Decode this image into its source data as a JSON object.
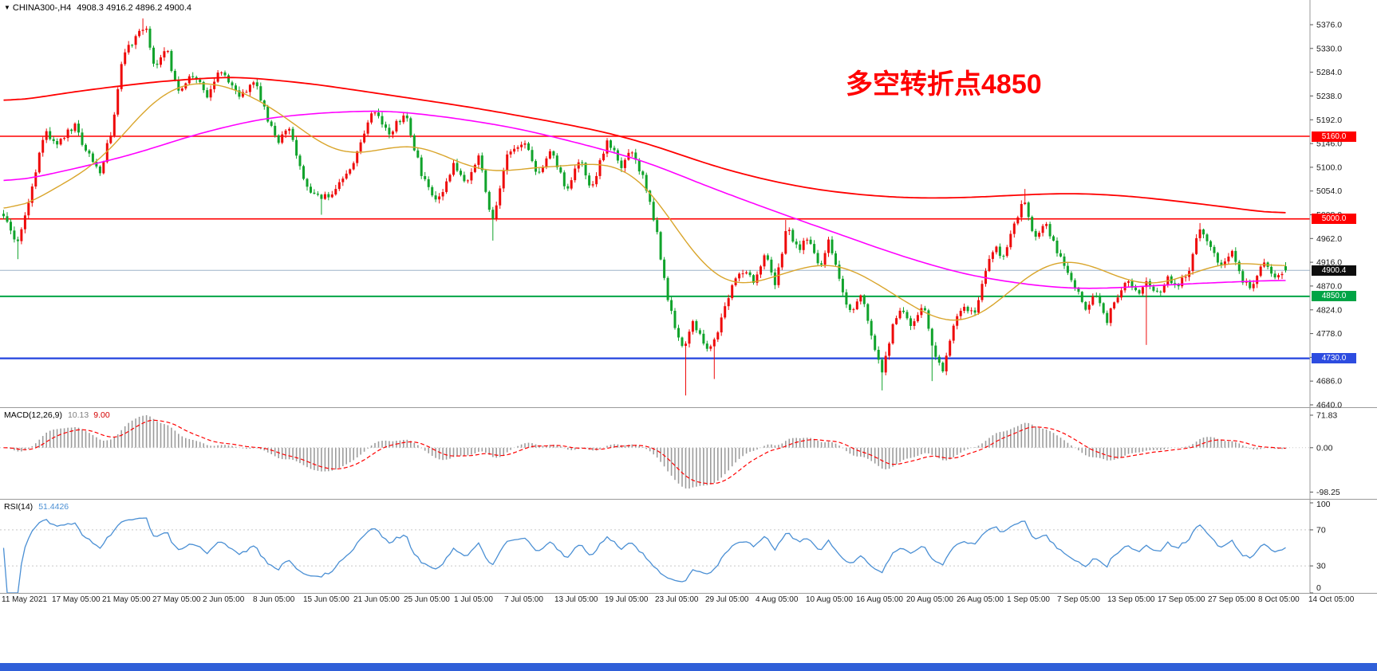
{
  "window": {
    "symbol": "CHINA300-,H4",
    "ohlc": "4908.3 4916.2 4896.2 4900.4",
    "ohlc_values": {
      "open": 4908.3,
      "high": 4916.2,
      "low": 4896.2,
      "close": 4900.4
    }
  },
  "icons": {
    "dropdown_arrow": "▼"
  },
  "annotation": {
    "text": "多空转折点4850",
    "color": "#ff0000"
  },
  "colors": {
    "background": "#ffffff",
    "bull_candle": "#ee0a0a",
    "bear_candle": "#10a32b",
    "level_red": "#ff0000",
    "level_green": "#00a445",
    "level_blue": "#2d4ce0",
    "bid_line": "#9db3c8",
    "current_badge": "#0d0d0d",
    "macd_hist": "#9c9c9c",
    "macd_signal": "#ff0000",
    "rsi_line": "#4a8fd4",
    "separator": "#9a9a9a",
    "taskbar": "#2f5fd8"
  },
  "indicators": {
    "macd": {
      "name": "MACD(12,26,9)",
      "value_main": "10.13",
      "value_signal": "9.00",
      "axis_labels": [
        "71.83",
        "0.00",
        "-98.25"
      ],
      "params": [
        12,
        26,
        9
      ]
    },
    "rsi": {
      "name": "RSI(14)",
      "value": "51.4426",
      "axis_labels": [
        "100",
        "70",
        "30",
        "0"
      ],
      "levels": [
        70,
        30
      ],
      "period": 14
    }
  },
  "price_axis": {
    "max": 5376,
    "min": 4640,
    "labels": [
      "5376.0",
      "5330.0",
      "5284.0",
      "5238.0",
      "5192.0",
      "5146.0",
      "5100.0",
      "5054.0",
      "5008.0",
      "4962.0",
      "4916.0",
      "4870.0",
      "4824.0",
      "4778.0",
      "4732.0",
      "4686.0",
      "4640.0"
    ]
  },
  "chart_data": {
    "type": "candlestick",
    "symbol": "CHINA300-",
    "timeframe": "H4",
    "title": "CHINA300-,H4 4908.3 4916.2 4896.2 4900.4",
    "x_labels": [
      "11 May 2021",
      "17 May 05:00",
      "21 May 05:00",
      "27 May 05:00",
      "2 Jun 05:00",
      "8 Jun 05:00",
      "15 Jun 05:00",
      "21 Jun 05:00",
      "25 Jun 05:00",
      "1 Jul 05:00",
      "7 Jul 05:00",
      "13 Jul 05:00",
      "19 Jul 05:00",
      "23 Jul 05:00",
      "29 Jul 05:00",
      "4 Aug 05:00",
      "10 Aug 05:00",
      "16 Aug 05:00",
      "20 Aug 05:00",
      "26 Aug 05:00",
      "1 Sep 05:00",
      "7 Sep 05:00",
      "13 Sep 05:00",
      "17 Sep 05:00",
      "27 Sep 05:00",
      "8 Oct 05:00",
      "14 Oct 05:00"
    ],
    "levels": [
      {
        "value": 5160.0,
        "label": "5160.0",
        "line": "#ff0000",
        "badge": "#ff0000",
        "width": 1.6,
        "role": "resistance"
      },
      {
        "value": 5000.0,
        "label": "5000.0",
        "line": "#ff0000",
        "badge": "#ff0000",
        "width": 1.6,
        "role": "resistance"
      },
      {
        "value": 4900.4,
        "label": "4900.4",
        "line": "#9db3c8",
        "badge": "#0d0d0d",
        "width": 1,
        "role": "current-price"
      },
      {
        "value": 4850.0,
        "label": "4850.0",
        "line": "#00a445",
        "badge": "#00a445",
        "width": 2,
        "role": "support"
      },
      {
        "value": 4730.0,
        "label": "4730.0",
        "line": "#2d4ce0",
        "badge": "#2d4ce0",
        "width": 2.4,
        "role": "support"
      }
    ],
    "price_path": [
      [
        0.0,
        5010
      ],
      [
        0.01,
        4948
      ],
      [
        0.022,
        5060
      ],
      [
        0.032,
        5168
      ],
      [
        0.042,
        5150
      ],
      [
        0.055,
        5182
      ],
      [
        0.065,
        5130
      ],
      [
        0.075,
        5088
      ],
      [
        0.085,
        5180
      ],
      [
        0.093,
        5320
      ],
      [
        0.103,
        5348
      ],
      [
        0.11,
        5378
      ],
      [
        0.118,
        5292
      ],
      [
        0.127,
        5330
      ],
      [
        0.136,
        5242
      ],
      [
        0.148,
        5282
      ],
      [
        0.158,
        5238
      ],
      [
        0.17,
        5290
      ],
      [
        0.184,
        5238
      ],
      [
        0.196,
        5268
      ],
      [
        0.205,
        5200
      ],
      [
        0.213,
        5148
      ],
      [
        0.222,
        5180
      ],
      [
        0.235,
        5068
      ],
      [
        0.247,
        5038
      ],
      [
        0.26,
        5058
      ],
      [
        0.272,
        5102
      ],
      [
        0.288,
        5218
      ],
      [
        0.3,
        5162
      ],
      [
        0.313,
        5205
      ],
      [
        0.327,
        5078
      ],
      [
        0.339,
        5032
      ],
      [
        0.351,
        5108
      ],
      [
        0.361,
        5062
      ],
      [
        0.371,
        5128
      ],
      [
        0.381,
        4988
      ],
      [
        0.393,
        5132
      ],
      [
        0.406,
        5150
      ],
      [
        0.417,
        5082
      ],
      [
        0.427,
        5138
      ],
      [
        0.439,
        5052
      ],
      [
        0.449,
        5118
      ],
      [
        0.459,
        5058
      ],
      [
        0.471,
        5158
      ],
      [
        0.481,
        5102
      ],
      [
        0.491,
        5132
      ],
      [
        0.501,
        5062
      ],
      [
        0.509,
        4982
      ],
      [
        0.517,
        4852
      ],
      [
        0.524,
        4792
      ],
      [
        0.531,
        4748
      ],
      [
        0.538,
        4800
      ],
      [
        0.546,
        4758
      ],
      [
        0.553,
        4748
      ],
      [
        0.561,
        4822
      ],
      [
        0.57,
        4876
      ],
      [
        0.578,
        4906
      ],
      [
        0.586,
        4876
      ],
      [
        0.594,
        4940
      ],
      [
        0.602,
        4872
      ],
      [
        0.611,
        4984
      ],
      [
        0.62,
        4942
      ],
      [
        0.628,
        4966
      ],
      [
        0.636,
        4902
      ],
      [
        0.644,
        4960
      ],
      [
        0.653,
        4868
      ],
      [
        0.661,
        4816
      ],
      [
        0.669,
        4850
      ],
      [
        0.677,
        4778
      ],
      [
        0.685,
        4702
      ],
      [
        0.693,
        4788
      ],
      [
        0.701,
        4826
      ],
      [
        0.709,
        4792
      ],
      [
        0.717,
        4840
      ],
      [
        0.725,
        4748
      ],
      [
        0.733,
        4702
      ],
      [
        0.741,
        4794
      ],
      [
        0.749,
        4830
      ],
      [
        0.757,
        4812
      ],
      [
        0.765,
        4898
      ],
      [
        0.773,
        4948
      ],
      [
        0.78,
        4922
      ],
      [
        0.788,
        4986
      ],
      [
        0.796,
        5042
      ],
      [
        0.804,
        4966
      ],
      [
        0.812,
        4994
      ],
      [
        0.82,
        4950
      ],
      [
        0.828,
        4902
      ],
      [
        0.836,
        4868
      ],
      [
        0.844,
        4822
      ],
      [
        0.852,
        4856
      ],
      [
        0.86,
        4798
      ],
      [
        0.868,
        4850
      ],
      [
        0.876,
        4880
      ],
      [
        0.884,
        4856
      ],
      [
        0.892,
        4878
      ],
      [
        0.9,
        4852
      ],
      [
        0.908,
        4888
      ],
      [
        0.916,
        4868
      ],
      [
        0.924,
        4898
      ],
      [
        0.933,
        4984
      ],
      [
        0.942,
        4940
      ],
      [
        0.95,
        4906
      ],
      [
        0.958,
        4938
      ],
      [
        0.966,
        4882
      ],
      [
        0.974,
        4862
      ],
      [
        0.982,
        4920
      ],
      [
        0.991,
        4888
      ],
      [
        1.0,
        4902
      ]
    ],
    "wick_extremes": [
      {
        "t": 0.01,
        "low": 4922
      },
      {
        "t": 0.11,
        "high": 5388
      },
      {
        "t": 0.248,
        "low": 5008
      },
      {
        "t": 0.381,
        "low": 4958
      },
      {
        "t": 0.531,
        "low": 4658
      },
      {
        "t": 0.553,
        "low": 4690
      },
      {
        "t": 0.611,
        "high": 4998
      },
      {
        "t": 0.685,
        "low": 4668
      },
      {
        "t": 0.725,
        "low": 4686
      },
      {
        "t": 0.796,
        "high": 5058
      },
      {
        "t": 0.892,
        "low": 4756
      },
      {
        "t": 0.933,
        "high": 4992
      }
    ],
    "moving_averages": [
      {
        "name": "slow-red",
        "color": "#ff0000",
        "width": 1.8,
        "anchors": [
          [
            0,
            5225
          ],
          [
            0.06,
            5248
          ],
          [
            0.12,
            5266
          ],
          [
            0.18,
            5276
          ],
          [
            0.24,
            5262
          ],
          [
            0.3,
            5240
          ],
          [
            0.36,
            5218
          ],
          [
            0.42,
            5192
          ],
          [
            0.47,
            5168
          ],
          [
            0.51,
            5140
          ],
          [
            0.55,
            5105
          ],
          [
            0.59,
            5078
          ],
          [
            0.63,
            5058
          ],
          [
            0.67,
            5046
          ],
          [
            0.71,
            5040
          ],
          [
            0.75,
            5041
          ],
          [
            0.79,
            5046
          ],
          [
            0.83,
            5050
          ],
          [
            0.87,
            5046
          ],
          [
            0.91,
            5036
          ],
          [
            0.95,
            5024
          ],
          [
            1.0,
            5008
          ]
        ]
      },
      {
        "name": "mid-magenta",
        "color": "#ff00ff",
        "width": 1.6,
        "anchors": [
          [
            0,
            5068
          ],
          [
            0.05,
            5094
          ],
          [
            0.1,
            5124
          ],
          [
            0.15,
            5164
          ],
          [
            0.2,
            5194
          ],
          [
            0.25,
            5206
          ],
          [
            0.3,
            5210
          ],
          [
            0.35,
            5196
          ],
          [
            0.4,
            5176
          ],
          [
            0.45,
            5146
          ],
          [
            0.5,
            5112
          ],
          [
            0.55,
            5062
          ],
          [
            0.6,
            5016
          ],
          [
            0.65,
            4972
          ],
          [
            0.7,
            4928
          ],
          [
            0.75,
            4892
          ],
          [
            0.8,
            4872
          ],
          [
            0.84,
            4864
          ],
          [
            0.88,
            4868
          ],
          [
            0.92,
            4874
          ],
          [
            0.96,
            4878
          ],
          [
            1.0,
            4882
          ]
        ]
      },
      {
        "name": "fast-orange",
        "color": "#d9a52b",
        "width": 1.4,
        "anchors": [
          [
            0,
            5004
          ],
          [
            0.04,
            5058
          ],
          [
            0.08,
            5118
          ],
          [
            0.11,
            5218
          ],
          [
            0.14,
            5268
          ],
          [
            0.17,
            5262
          ],
          [
            0.2,
            5232
          ],
          [
            0.23,
            5178
          ],
          [
            0.26,
            5122
          ],
          [
            0.29,
            5130
          ],
          [
            0.32,
            5150
          ],
          [
            0.35,
            5114
          ],
          [
            0.38,
            5086
          ],
          [
            0.41,
            5100
          ],
          [
            0.44,
            5102
          ],
          [
            0.47,
            5112
          ],
          [
            0.5,
            5078
          ],
          [
            0.53,
            4958
          ],
          [
            0.56,
            4868
          ],
          [
            0.59,
            4876
          ],
          [
            0.62,
            4906
          ],
          [
            0.65,
            4918
          ],
          [
            0.68,
            4878
          ],
          [
            0.71,
            4828
          ],
          [
            0.74,
            4790
          ],
          [
            0.77,
            4822
          ],
          [
            0.8,
            4898
          ],
          [
            0.83,
            4928
          ],
          [
            0.86,
            4898
          ],
          [
            0.89,
            4866
          ],
          [
            0.92,
            4886
          ],
          [
            0.95,
            4918
          ],
          [
            0.98,
            4912
          ],
          [
            1.0,
            4906
          ]
        ]
      }
    ]
  }
}
